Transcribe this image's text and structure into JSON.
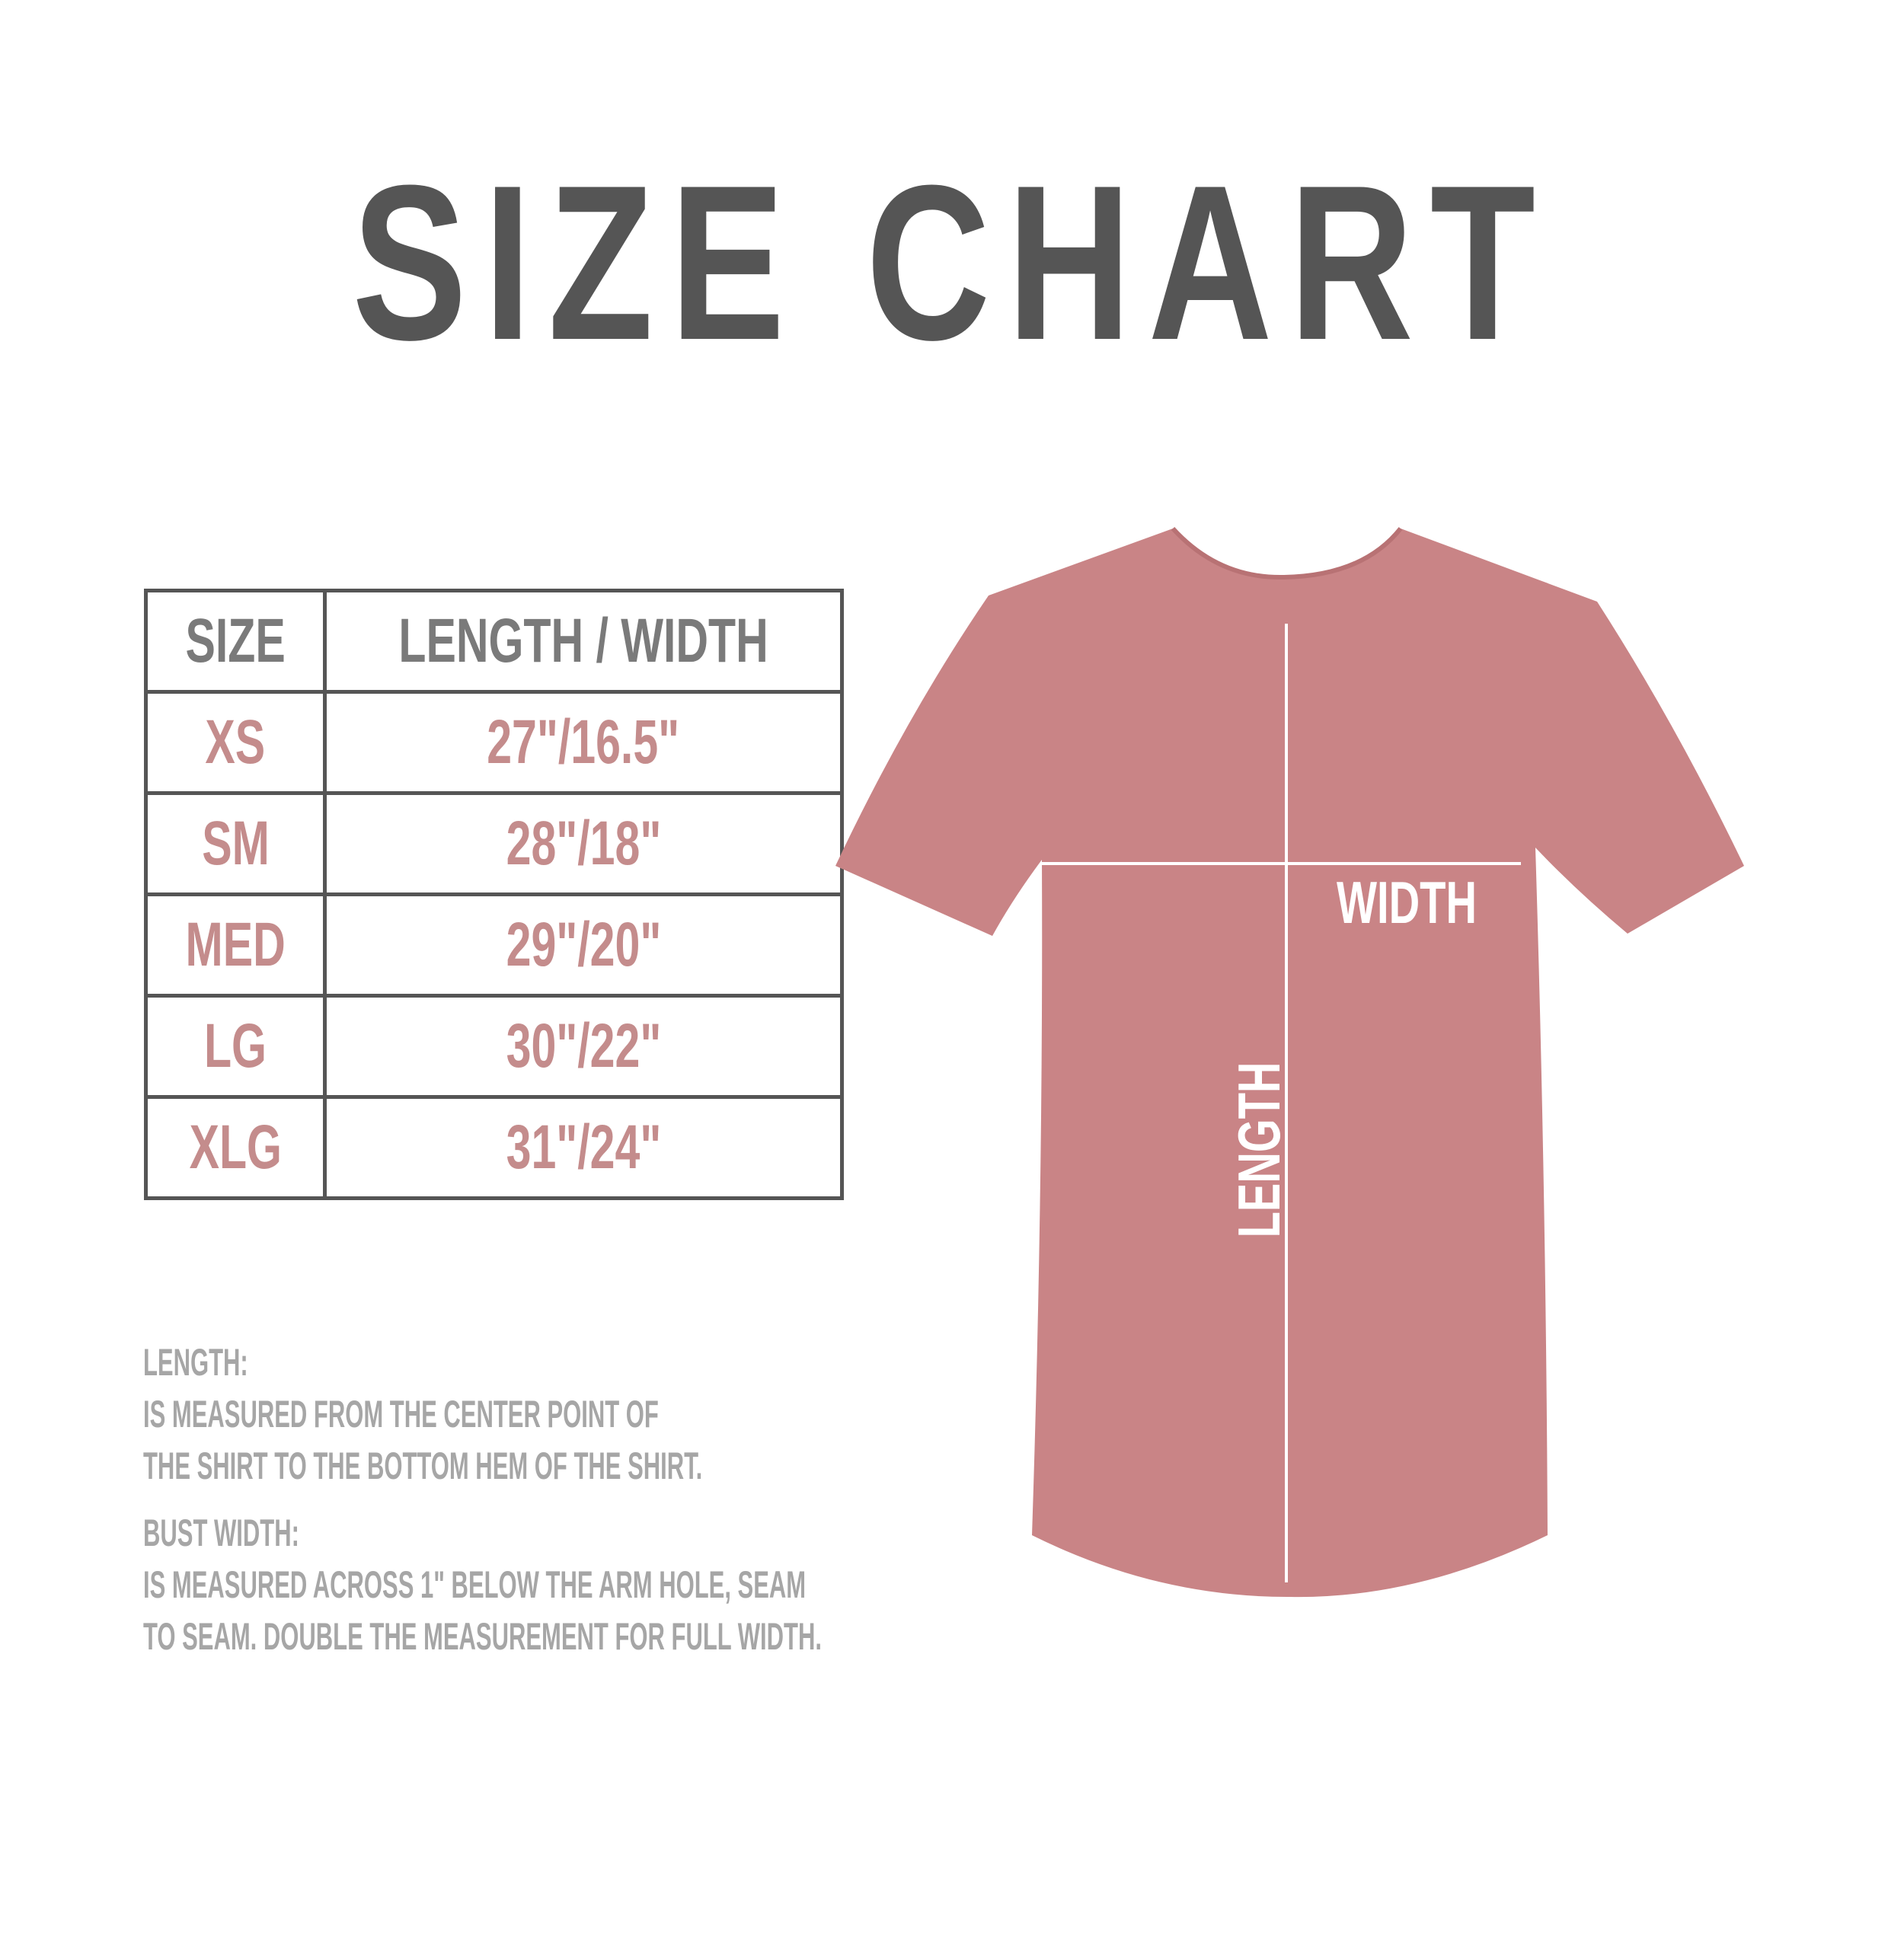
{
  "title": "SIZE CHART",
  "table": {
    "headers": [
      "SIZE",
      "LENGTH / WIDTH"
    ],
    "rows": [
      {
        "size": "XS",
        "measure": "27\"/16.5\""
      },
      {
        "size": "SM",
        "measure": "28\"/18\""
      },
      {
        "size": "MED",
        "measure": "29\"/20\""
      },
      {
        "size": "LG",
        "measure": "30\"/22\""
      },
      {
        "size": "XLG",
        "measure": "31\"/24\""
      }
    ]
  },
  "notes": {
    "length_heading": "LENGTH:",
    "length_line1": "IS MEASURED FROM THE CENTER POINT OF",
    "length_line2": "THE SHIRT TO THE BOTTOM HEM OF THE SHIRT.",
    "width_heading": "BUST WIDTH:",
    "width_line1": "IS MEASURED ACROSS  1\" BELOW THE ARM HOLE, SEAM",
    "width_line2": "TO SEAM. DOUBLE THE MEASUREMENT FOR FULL WIDTH."
  },
  "diagram": {
    "width_label": "WIDTH",
    "length_label": "LENGTH",
    "shirt_color": "#c98486"
  }
}
